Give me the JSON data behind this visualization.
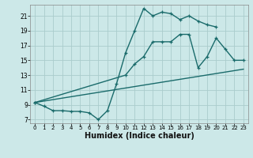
{
  "bg_color": "#cce8e8",
  "grid_color": "#aacccc",
  "line_color": "#1a6b6b",
  "line_width": 1.0,
  "xlabel": "Humidex (Indice chaleur)",
  "xlabel_fontsize": 7,
  "ytick_labels": [
    "7",
    "9",
    "11",
    "13",
    "15",
    "17",
    "19",
    "21"
  ],
  "ytick_vals": [
    7,
    9,
    11,
    13,
    15,
    17,
    19,
    21
  ],
  "xtick_vals": [
    0,
    1,
    2,
    3,
    4,
    5,
    6,
    7,
    8,
    9,
    10,
    11,
    12,
    13,
    14,
    15,
    16,
    17,
    18,
    19,
    20,
    21,
    22,
    23
  ],
  "xlim": [
    -0.5,
    23.5
  ],
  "ylim": [
    6.5,
    22.5
  ],
  "line1_x": [
    0,
    1,
    2,
    3,
    4,
    5,
    6,
    7,
    8,
    9,
    10,
    11,
    12,
    13,
    14,
    15,
    16,
    17,
    18,
    19,
    20
  ],
  "line1_y": [
    9.3,
    8.8,
    8.2,
    8.2,
    8.1,
    8.1,
    7.9,
    7.0,
    8.2,
    11.8,
    16.0,
    19.0,
    22.0,
    21.0,
    21.5,
    21.3,
    20.5,
    21.0,
    20.3,
    19.8,
    19.5
  ],
  "line2_x": [
    0,
    10,
    11,
    12,
    13,
    14,
    15,
    16,
    17,
    18,
    19,
    20,
    21,
    22,
    23
  ],
  "line2_y": [
    9.3,
    13.0,
    14.5,
    15.5,
    17.5,
    17.5,
    17.5,
    18.5,
    18.5,
    14.0,
    15.5,
    18.0,
    16.5,
    15.0,
    15.0
  ],
  "line3_x": [
    0,
    23
  ],
  "line3_y": [
    9.3,
    13.8
  ]
}
